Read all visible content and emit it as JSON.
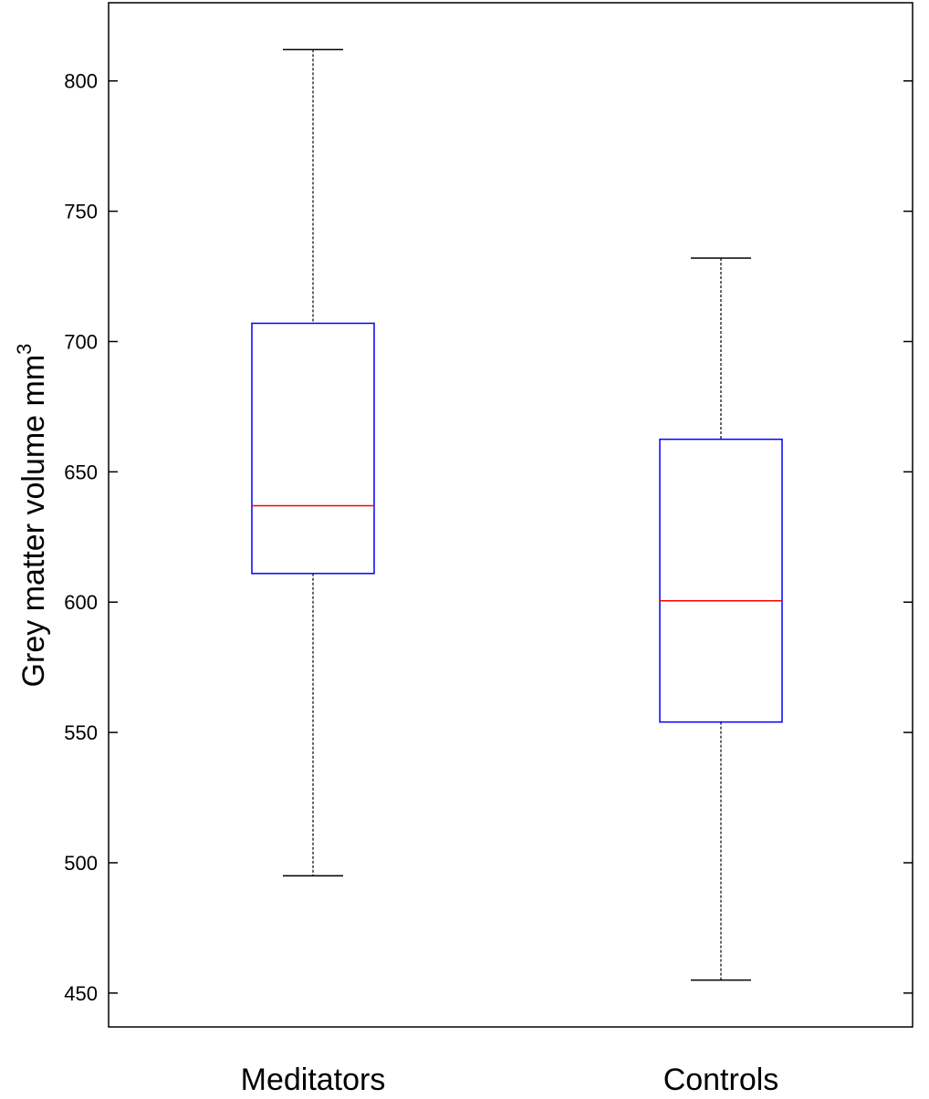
{
  "chart_data": {
    "type": "box",
    "categories": [
      "Meditators",
      "Controls"
    ],
    "ylabel": "Grey matter volume mm",
    "ylabel_sup": "3",
    "ylim": [
      437,
      830
    ],
    "yticks": [
      450,
      500,
      550,
      600,
      650,
      700,
      750,
      800
    ],
    "grid": false,
    "boxes": [
      {
        "name": "Meditators",
        "whisker_low": 495,
        "q1": 611,
        "median": 637,
        "q3": 707,
        "whisker_high": 812
      },
      {
        "name": "Controls",
        "whisker_low": 455,
        "q1": 554,
        "median": 600.5,
        "q3": 662.5,
        "whisker_high": 732
      }
    ],
    "colors": {
      "box": "#0000ff",
      "median": "#ff0000",
      "whisker": "#000000",
      "axes": "#000000"
    }
  }
}
